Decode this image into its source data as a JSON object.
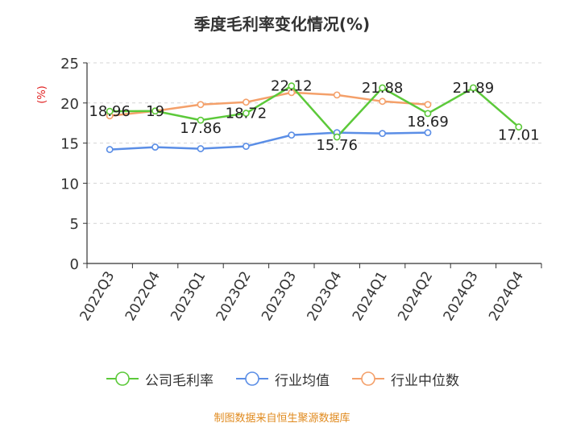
{
  "chart_data": {
    "type": "line",
    "title": "季度毛利率变化情况(%)",
    "ylabel": "(%)",
    "xlabel": "",
    "ylim": [
      0,
      25
    ],
    "yticks": [
      0,
      5,
      10,
      15,
      20,
      25
    ],
    "grid": true,
    "legend_position": "bottom",
    "categories": [
      "2022Q3",
      "2022Q4",
      "2023Q1",
      "2023Q2",
      "2023Q3",
      "2023Q4",
      "2024Q1",
      "2024Q2",
      "2024Q3",
      "2024Q4"
    ],
    "series": [
      {
        "name": "公司毛利率",
        "color": "#5cc93a",
        "values": [
          18.96,
          19,
          17.86,
          18.72,
          22.12,
          15.76,
          21.88,
          18.69,
          21.89,
          17.01
        ],
        "data_labels": [
          "18.96",
          "19",
          "17.86",
          "18.72",
          "22.12",
          "15.76",
          "21.88",
          "18.69",
          "21.89",
          "17.01"
        ]
      },
      {
        "name": "行业均值",
        "color": "#5b8ee6",
        "values": [
          14.2,
          14.5,
          14.3,
          14.6,
          16.0,
          16.3,
          16.2,
          16.3,
          null,
          null
        ]
      },
      {
        "name": "行业中位数",
        "color": "#f4a06a",
        "values": [
          18.4,
          19.0,
          19.8,
          20.1,
          21.3,
          21.0,
          20.2,
          19.8,
          null,
          null
        ]
      }
    ]
  },
  "source": "制图数据来自恒生聚源数据库"
}
